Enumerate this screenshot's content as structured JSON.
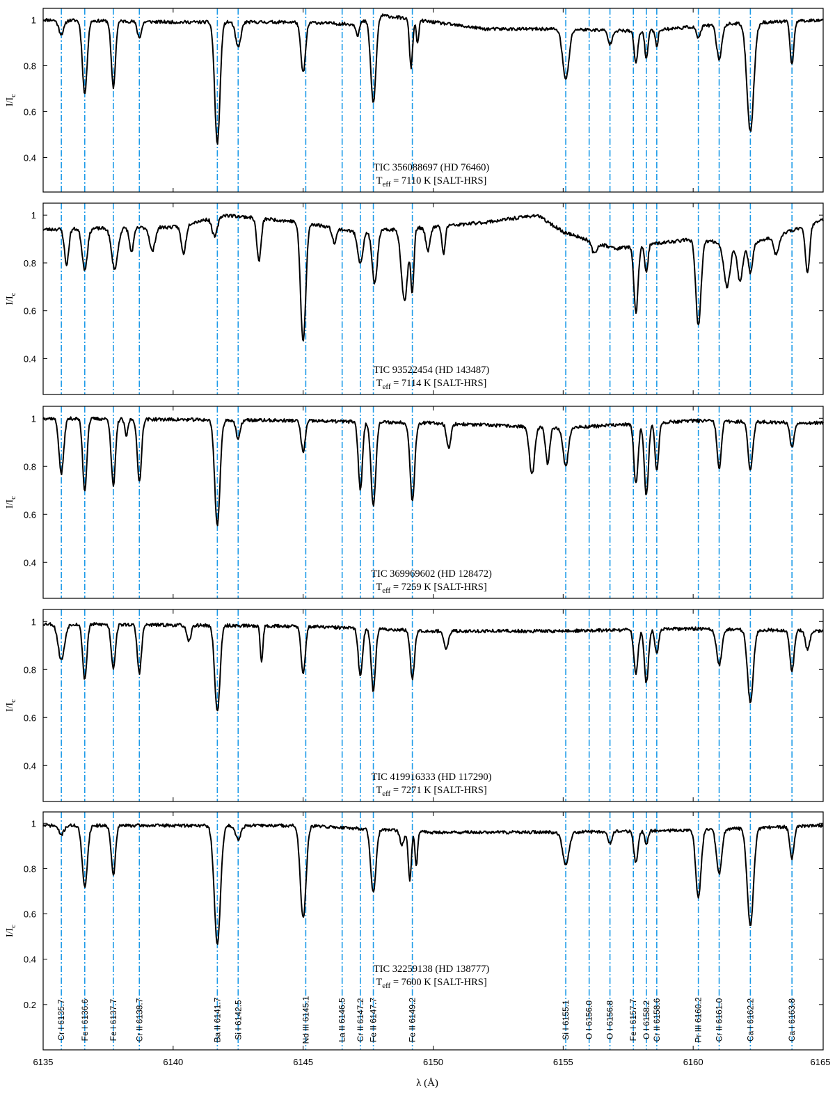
{
  "chart_data": {
    "type": "line",
    "xlabel": "λ (Å)",
    "xlim": [
      6135,
      6165
    ],
    "xticks": [
      6135,
      6140,
      6145,
      6150,
      6155,
      6160,
      6165
    ],
    "colors": {
      "spectrum": "#000000",
      "reference_lines": "#1e9be8"
    },
    "reference_lines": [
      {
        "label": "Cr I 6135.7",
        "x": 6135.7
      },
      {
        "label": "Fe I 6136.6",
        "x": 6136.6
      },
      {
        "label": "Fe I 6137.7",
        "x": 6137.7
      },
      {
        "label": "Cr II 6138.7",
        "x": 6138.7
      },
      {
        "label": "Ba II 6141.7",
        "x": 6141.7
      },
      {
        "label": "Si I 6142.5",
        "x": 6142.5
      },
      {
        "label": "Nd III 6145.1",
        "x": 6145.1
      },
      {
        "label": "La II 6146.5",
        "x": 6146.5
      },
      {
        "label": "Cr II 6147.2",
        "x": 6147.2
      },
      {
        "label": "Fe II 6147.7",
        "x": 6147.7
      },
      {
        "label": "Fe II 6149.2",
        "x": 6149.2
      },
      {
        "label": "Si I 6155.1",
        "x": 6155.1
      },
      {
        "label": "O I 6156.0",
        "x": 6156.0
      },
      {
        "label": "O I 6156.8",
        "x": 6156.8
      },
      {
        "label": "Fe I 6157.7",
        "x": 6157.7
      },
      {
        "label": "O I 6158.2",
        "x": 6158.2
      },
      {
        "label": "Cr II 6158.6",
        "x": 6158.6
      },
      {
        "label": "Pr III 6160.2",
        "x": 6160.2
      },
      {
        "label": "Cr II 6161.0",
        "x": 6161.0
      },
      {
        "label": "Ca I 6162.2",
        "x": 6162.2
      },
      {
        "label": "Ca I 6163.8",
        "x": 6163.8
      }
    ],
    "panels": [
      {
        "name": "TIC 356088697 (HD 76460)",
        "ylabel": "I/Ic",
        "ylim": [
          0.25,
          1.05
        ],
        "yticks": [
          0.4,
          0.6,
          0.8,
          1
        ],
        "temp_prefix": "T",
        "temp_sub": "eff",
        "temp_text": " = 7110 K [SALT-HRS]",
        "seed": 11,
        "continuum": [
          [
            6135,
            1.0
          ],
          [
            6140,
            0.99
          ],
          [
            6145,
            0.99
          ],
          [
            6147,
            0.98
          ],
          [
            6148,
            1.02
          ],
          [
            6150,
            0.99
          ],
          [
            6152,
            0.96
          ],
          [
            6155,
            0.96
          ],
          [
            6158,
            0.95
          ],
          [
            6161,
            0.98
          ],
          [
            6165,
            1.0
          ]
        ],
        "lines": [
          [
            6135.7,
            0.06,
            0.1
          ],
          [
            6136.6,
            0.32,
            0.09
          ],
          [
            6137.7,
            0.29,
            0.08
          ],
          [
            6138.7,
            0.07,
            0.08
          ],
          [
            6141.7,
            0.53,
            0.1
          ],
          [
            6142.5,
            0.11,
            0.1
          ],
          [
            6145.0,
            0.22,
            0.09
          ],
          [
            6147.1,
            0.05,
            0.06
          ],
          [
            6147.7,
            0.37,
            0.1
          ],
          [
            6149.15,
            0.21,
            0.06
          ],
          [
            6149.4,
            0.1,
            0.05
          ],
          [
            6155.1,
            0.22,
            0.12
          ],
          [
            6156.8,
            0.06,
            0.08
          ],
          [
            6157.8,
            0.14,
            0.07
          ],
          [
            6158.2,
            0.12,
            0.06
          ],
          [
            6158.6,
            0.07,
            0.05
          ],
          [
            6160.2,
            0.05,
            0.08
          ],
          [
            6161.0,
            0.15,
            0.1
          ],
          [
            6162.2,
            0.47,
            0.13
          ],
          [
            6163.8,
            0.19,
            0.07
          ]
        ]
      },
      {
        "name": "TIC 93522454 (HD 143487)",
        "ylabel": "I/Ic",
        "ylim": [
          0.25,
          1.05
        ],
        "yticks": [
          0.4,
          0.6,
          0.8,
          1
        ],
        "temp_prefix": "T",
        "temp_sub": "eff",
        "temp_text": " = 7114 K [SALT-HRS]",
        "seed": 23,
        "continuum": [
          [
            6135,
            0.94
          ],
          [
            6140,
            0.95
          ],
          [
            6142,
            1.0
          ],
          [
            6145,
            0.97
          ],
          [
            6147,
            0.93
          ],
          [
            6150,
            0.95
          ],
          [
            6152,
            0.97
          ],
          [
            6154,
            1.0
          ],
          [
            6155,
            0.93
          ],
          [
            6157,
            0.86
          ],
          [
            6160,
            0.9
          ],
          [
            6162,
            0.87
          ],
          [
            6165,
            0.98
          ]
        ],
        "lines": [
          [
            6135.9,
            0.15,
            0.08
          ],
          [
            6136.6,
            0.17,
            0.1
          ],
          [
            6137.75,
            0.17,
            0.12
          ],
          [
            6138.4,
            0.1,
            0.08
          ],
          [
            6139.2,
            0.1,
            0.1
          ],
          [
            6140.4,
            0.12,
            0.09
          ],
          [
            6141.6,
            0.08,
            0.1
          ],
          [
            6143.3,
            0.18,
            0.08
          ],
          [
            6145.0,
            0.5,
            0.1
          ],
          [
            6146.2,
            0.06,
            0.08
          ],
          [
            6147.2,
            0.13,
            0.1
          ],
          [
            6147.75,
            0.22,
            0.1
          ],
          [
            6148.9,
            0.3,
            0.12
          ],
          [
            6149.2,
            0.26,
            0.06
          ],
          [
            6149.8,
            0.1,
            0.08
          ],
          [
            6150.4,
            0.12,
            0.06
          ],
          [
            6156.2,
            0.05,
            0.1
          ],
          [
            6157.8,
            0.28,
            0.08
          ],
          [
            6158.2,
            0.12,
            0.06
          ],
          [
            6160.2,
            0.36,
            0.1
          ],
          [
            6161.3,
            0.18,
            0.12
          ],
          [
            6161.8,
            0.15,
            0.1
          ],
          [
            6162.2,
            0.12,
            0.08
          ],
          [
            6163.2,
            0.08,
            0.1
          ],
          [
            6164.4,
            0.2,
            0.08
          ]
        ]
      },
      {
        "name": "TIC 369969602 (HD 128472)",
        "ylabel": "I/Ic",
        "ylim": [
          0.25,
          1.05
        ],
        "yticks": [
          0.4,
          0.6,
          0.8,
          1
        ],
        "temp_prefix": "T",
        "temp_sub": "eff",
        "temp_text": " = 7259 K [SALT-HRS]",
        "seed": 37,
        "continuum": [
          [
            6135,
            1.0
          ],
          [
            6145,
            0.99
          ],
          [
            6150,
            0.98
          ],
          [
            6155,
            0.96
          ],
          [
            6160,
            0.99
          ],
          [
            6165,
            0.98
          ]
        ],
        "lines": [
          [
            6135.7,
            0.23,
            0.09
          ],
          [
            6136.6,
            0.3,
            0.08
          ],
          [
            6137.7,
            0.28,
            0.08
          ],
          [
            6138.2,
            0.07,
            0.06
          ],
          [
            6138.7,
            0.26,
            0.08
          ],
          [
            6141.7,
            0.44,
            0.1
          ],
          [
            6142.5,
            0.08,
            0.08
          ],
          [
            6145.0,
            0.13,
            0.08
          ],
          [
            6147.2,
            0.28,
            0.08
          ],
          [
            6147.7,
            0.35,
            0.09
          ],
          [
            6149.2,
            0.32,
            0.09
          ],
          [
            6150.6,
            0.1,
            0.08
          ],
          [
            6153.8,
            0.2,
            0.1
          ],
          [
            6154.4,
            0.15,
            0.08
          ],
          [
            6155.1,
            0.16,
            0.1
          ],
          [
            6157.8,
            0.25,
            0.08
          ],
          [
            6158.2,
            0.3,
            0.08
          ],
          [
            6158.6,
            0.2,
            0.07
          ],
          [
            6161.0,
            0.2,
            0.08
          ],
          [
            6162.2,
            0.2,
            0.09
          ],
          [
            6163.8,
            0.1,
            0.08
          ]
        ]
      },
      {
        "name": "TIC 419916333 (HD 117290)",
        "ylabel": "I/Ic",
        "ylim": [
          0.25,
          1.05
        ],
        "yticks": [
          0.4,
          0.6,
          0.8,
          1
        ],
        "temp_prefix": "T",
        "temp_sub": "eff",
        "temp_text": " = 7271 K [SALT-HRS]",
        "seed": 53,
        "continuum": [
          [
            6135,
            0.99
          ],
          [
            6145,
            0.98
          ],
          [
            6150,
            0.96
          ],
          [
            6155,
            0.96
          ],
          [
            6160,
            0.97
          ],
          [
            6165,
            0.96
          ]
        ],
        "lines": [
          [
            6135.7,
            0.15,
            0.12
          ],
          [
            6136.6,
            0.23,
            0.08
          ],
          [
            6137.7,
            0.18,
            0.08
          ],
          [
            6138.7,
            0.2,
            0.08
          ],
          [
            6140.6,
            0.07,
            0.08
          ],
          [
            6141.7,
            0.36,
            0.1
          ],
          [
            6143.4,
            0.15,
            0.05
          ],
          [
            6145.0,
            0.2,
            0.08
          ],
          [
            6147.2,
            0.2,
            0.08
          ],
          [
            6147.7,
            0.26,
            0.08
          ],
          [
            6149.2,
            0.2,
            0.08
          ],
          [
            6150.5,
            0.08,
            0.08
          ],
          [
            6157.8,
            0.18,
            0.08
          ],
          [
            6158.2,
            0.22,
            0.08
          ],
          [
            6158.6,
            0.1,
            0.07
          ],
          [
            6161.0,
            0.15,
            0.1
          ],
          [
            6162.2,
            0.3,
            0.11
          ],
          [
            6163.8,
            0.17,
            0.08
          ],
          [
            6164.4,
            0.08,
            0.08
          ]
        ]
      },
      {
        "name": "TIC 32259138 (HD 138777)",
        "ylabel": "I/Ic",
        "ylim": [
          0.0,
          1.05
        ],
        "yticks": [
          0.2,
          0.4,
          0.6,
          0.8,
          1
        ],
        "temp_prefix": "T",
        "temp_sub": "eff",
        "temp_text": " = 7600 K [SALT-HRS]",
        "seed": 71,
        "continuum": [
          [
            6135,
            0.99
          ],
          [
            6145,
            0.99
          ],
          [
            6150,
            0.96
          ],
          [
            6155,
            0.96
          ],
          [
            6160,
            0.97
          ],
          [
            6165,
            0.99
          ]
        ],
        "lines": [
          [
            6135.7,
            0.04,
            0.1
          ],
          [
            6136.6,
            0.27,
            0.1
          ],
          [
            6137.7,
            0.22,
            0.08
          ],
          [
            6141.7,
            0.52,
            0.12
          ],
          [
            6142.5,
            0.06,
            0.1
          ],
          [
            6145.0,
            0.41,
            0.11
          ],
          [
            6147.7,
            0.28,
            0.1
          ],
          [
            6148.8,
            0.06,
            0.08
          ],
          [
            6149.1,
            0.22,
            0.06
          ],
          [
            6149.35,
            0.15,
            0.05
          ],
          [
            6155.1,
            0.14,
            0.12
          ],
          [
            6156.8,
            0.05,
            0.08
          ],
          [
            6157.8,
            0.14,
            0.08
          ],
          [
            6158.2,
            0.06,
            0.06
          ],
          [
            6160.2,
            0.3,
            0.1
          ],
          [
            6161.0,
            0.2,
            0.1
          ],
          [
            6162.2,
            0.43,
            0.12
          ],
          [
            6163.8,
            0.14,
            0.08
          ]
        ]
      }
    ]
  }
}
